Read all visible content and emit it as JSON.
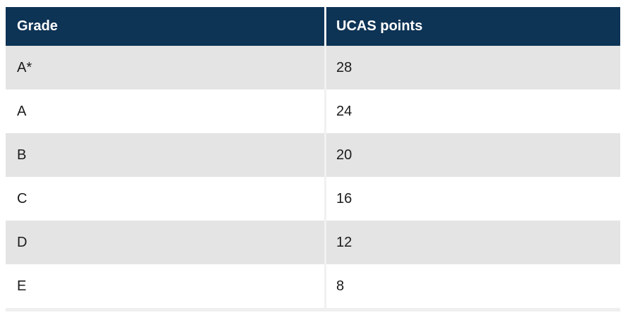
{
  "table": {
    "columns": [
      {
        "label": "Grade"
      },
      {
        "label": "UCAS points"
      }
    ],
    "rows": [
      {
        "grade": "A*",
        "points": "28"
      },
      {
        "grade": "A",
        "points": "24"
      },
      {
        "grade": "B",
        "points": "20"
      },
      {
        "grade": "C",
        "points": "16"
      },
      {
        "grade": "D",
        "points": "12"
      },
      {
        "grade": "E",
        "points": "8"
      }
    ]
  },
  "colors": {
    "header_bg": "#0d3355",
    "header_text": "#ffffff",
    "row_alt_bg": "#e4e4e4",
    "row_bg": "#ffffff",
    "cell_text": "#1b1b1b",
    "column_divider": "#f1f1f1",
    "bottom_border": "#efefef",
    "page_bg": "#ffffff"
  },
  "chart_data": {
    "type": "table",
    "columns": [
      "Grade",
      "UCAS points"
    ],
    "categories": [
      "A*",
      "A",
      "B",
      "C",
      "D",
      "E"
    ],
    "values": [
      28,
      24,
      20,
      16,
      12,
      8
    ],
    "title": "",
    "xlabel": "Grade",
    "ylabel": "UCAS points"
  }
}
